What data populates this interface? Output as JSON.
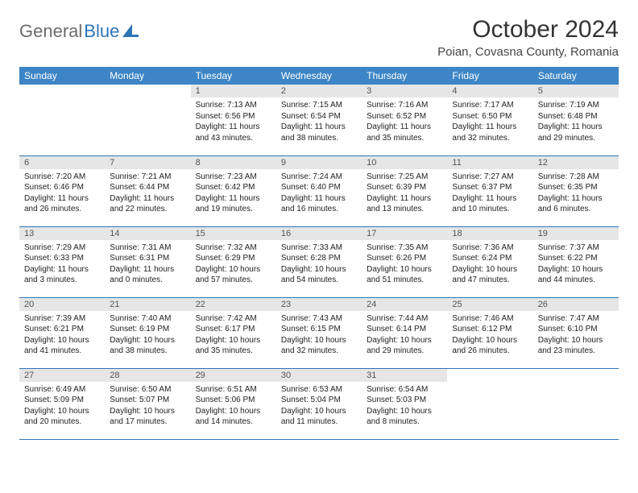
{
  "brand": {
    "part1": "General",
    "part2": "Blue"
  },
  "title": "October 2024",
  "location": "Poian, Covasna County, Romania",
  "colors": {
    "header_bg": "#3d85c6",
    "header_fg": "#ffffff",
    "daynum_bg": "#e6e6e6",
    "rule": "#2e75b6",
    "logo_gray": "#6b6b6b",
    "logo_blue": "#2e75b6",
    "page_bg": "#ffffff"
  },
  "weekdays": [
    "Sunday",
    "Monday",
    "Tuesday",
    "Wednesday",
    "Thursday",
    "Friday",
    "Saturday"
  ],
  "weeks": [
    [
      null,
      null,
      {
        "n": "1",
        "sr": "7:13 AM",
        "ss": "6:56 PM",
        "dl": "11 hours and 43 minutes."
      },
      {
        "n": "2",
        "sr": "7:15 AM",
        "ss": "6:54 PM",
        "dl": "11 hours and 38 minutes."
      },
      {
        "n": "3",
        "sr": "7:16 AM",
        "ss": "6:52 PM",
        "dl": "11 hours and 35 minutes."
      },
      {
        "n": "4",
        "sr": "7:17 AM",
        "ss": "6:50 PM",
        "dl": "11 hours and 32 minutes."
      },
      {
        "n": "5",
        "sr": "7:19 AM",
        "ss": "6:48 PM",
        "dl": "11 hours and 29 minutes."
      }
    ],
    [
      {
        "n": "6",
        "sr": "7:20 AM",
        "ss": "6:46 PM",
        "dl": "11 hours and 26 minutes."
      },
      {
        "n": "7",
        "sr": "7:21 AM",
        "ss": "6:44 PM",
        "dl": "11 hours and 22 minutes."
      },
      {
        "n": "8",
        "sr": "7:23 AM",
        "ss": "6:42 PM",
        "dl": "11 hours and 19 minutes."
      },
      {
        "n": "9",
        "sr": "7:24 AM",
        "ss": "6:40 PM",
        "dl": "11 hours and 16 minutes."
      },
      {
        "n": "10",
        "sr": "7:25 AM",
        "ss": "6:39 PM",
        "dl": "11 hours and 13 minutes."
      },
      {
        "n": "11",
        "sr": "7:27 AM",
        "ss": "6:37 PM",
        "dl": "11 hours and 10 minutes."
      },
      {
        "n": "12",
        "sr": "7:28 AM",
        "ss": "6:35 PM",
        "dl": "11 hours and 6 minutes."
      }
    ],
    [
      {
        "n": "13",
        "sr": "7:29 AM",
        "ss": "6:33 PM",
        "dl": "11 hours and 3 minutes."
      },
      {
        "n": "14",
        "sr": "7:31 AM",
        "ss": "6:31 PM",
        "dl": "11 hours and 0 minutes."
      },
      {
        "n": "15",
        "sr": "7:32 AM",
        "ss": "6:29 PM",
        "dl": "10 hours and 57 minutes."
      },
      {
        "n": "16",
        "sr": "7:33 AM",
        "ss": "6:28 PM",
        "dl": "10 hours and 54 minutes."
      },
      {
        "n": "17",
        "sr": "7:35 AM",
        "ss": "6:26 PM",
        "dl": "10 hours and 51 minutes."
      },
      {
        "n": "18",
        "sr": "7:36 AM",
        "ss": "6:24 PM",
        "dl": "10 hours and 47 minutes."
      },
      {
        "n": "19",
        "sr": "7:37 AM",
        "ss": "6:22 PM",
        "dl": "10 hours and 44 minutes."
      }
    ],
    [
      {
        "n": "20",
        "sr": "7:39 AM",
        "ss": "6:21 PM",
        "dl": "10 hours and 41 minutes."
      },
      {
        "n": "21",
        "sr": "7:40 AM",
        "ss": "6:19 PM",
        "dl": "10 hours and 38 minutes."
      },
      {
        "n": "22",
        "sr": "7:42 AM",
        "ss": "6:17 PM",
        "dl": "10 hours and 35 minutes."
      },
      {
        "n": "23",
        "sr": "7:43 AM",
        "ss": "6:15 PM",
        "dl": "10 hours and 32 minutes."
      },
      {
        "n": "24",
        "sr": "7:44 AM",
        "ss": "6:14 PM",
        "dl": "10 hours and 29 minutes."
      },
      {
        "n": "25",
        "sr": "7:46 AM",
        "ss": "6:12 PM",
        "dl": "10 hours and 26 minutes."
      },
      {
        "n": "26",
        "sr": "7:47 AM",
        "ss": "6:10 PM",
        "dl": "10 hours and 23 minutes."
      }
    ],
    [
      {
        "n": "27",
        "sr": "6:49 AM",
        "ss": "5:09 PM",
        "dl": "10 hours and 20 minutes."
      },
      {
        "n": "28",
        "sr": "6:50 AM",
        "ss": "5:07 PM",
        "dl": "10 hours and 17 minutes."
      },
      {
        "n": "29",
        "sr": "6:51 AM",
        "ss": "5:06 PM",
        "dl": "10 hours and 14 minutes."
      },
      {
        "n": "30",
        "sr": "6:53 AM",
        "ss": "5:04 PM",
        "dl": "10 hours and 11 minutes."
      },
      {
        "n": "31",
        "sr": "6:54 AM",
        "ss": "5:03 PM",
        "dl": "10 hours and 8 minutes."
      },
      null,
      null
    ]
  ],
  "labels": {
    "sunrise": "Sunrise:",
    "sunset": "Sunset:",
    "daylight": "Daylight:"
  }
}
